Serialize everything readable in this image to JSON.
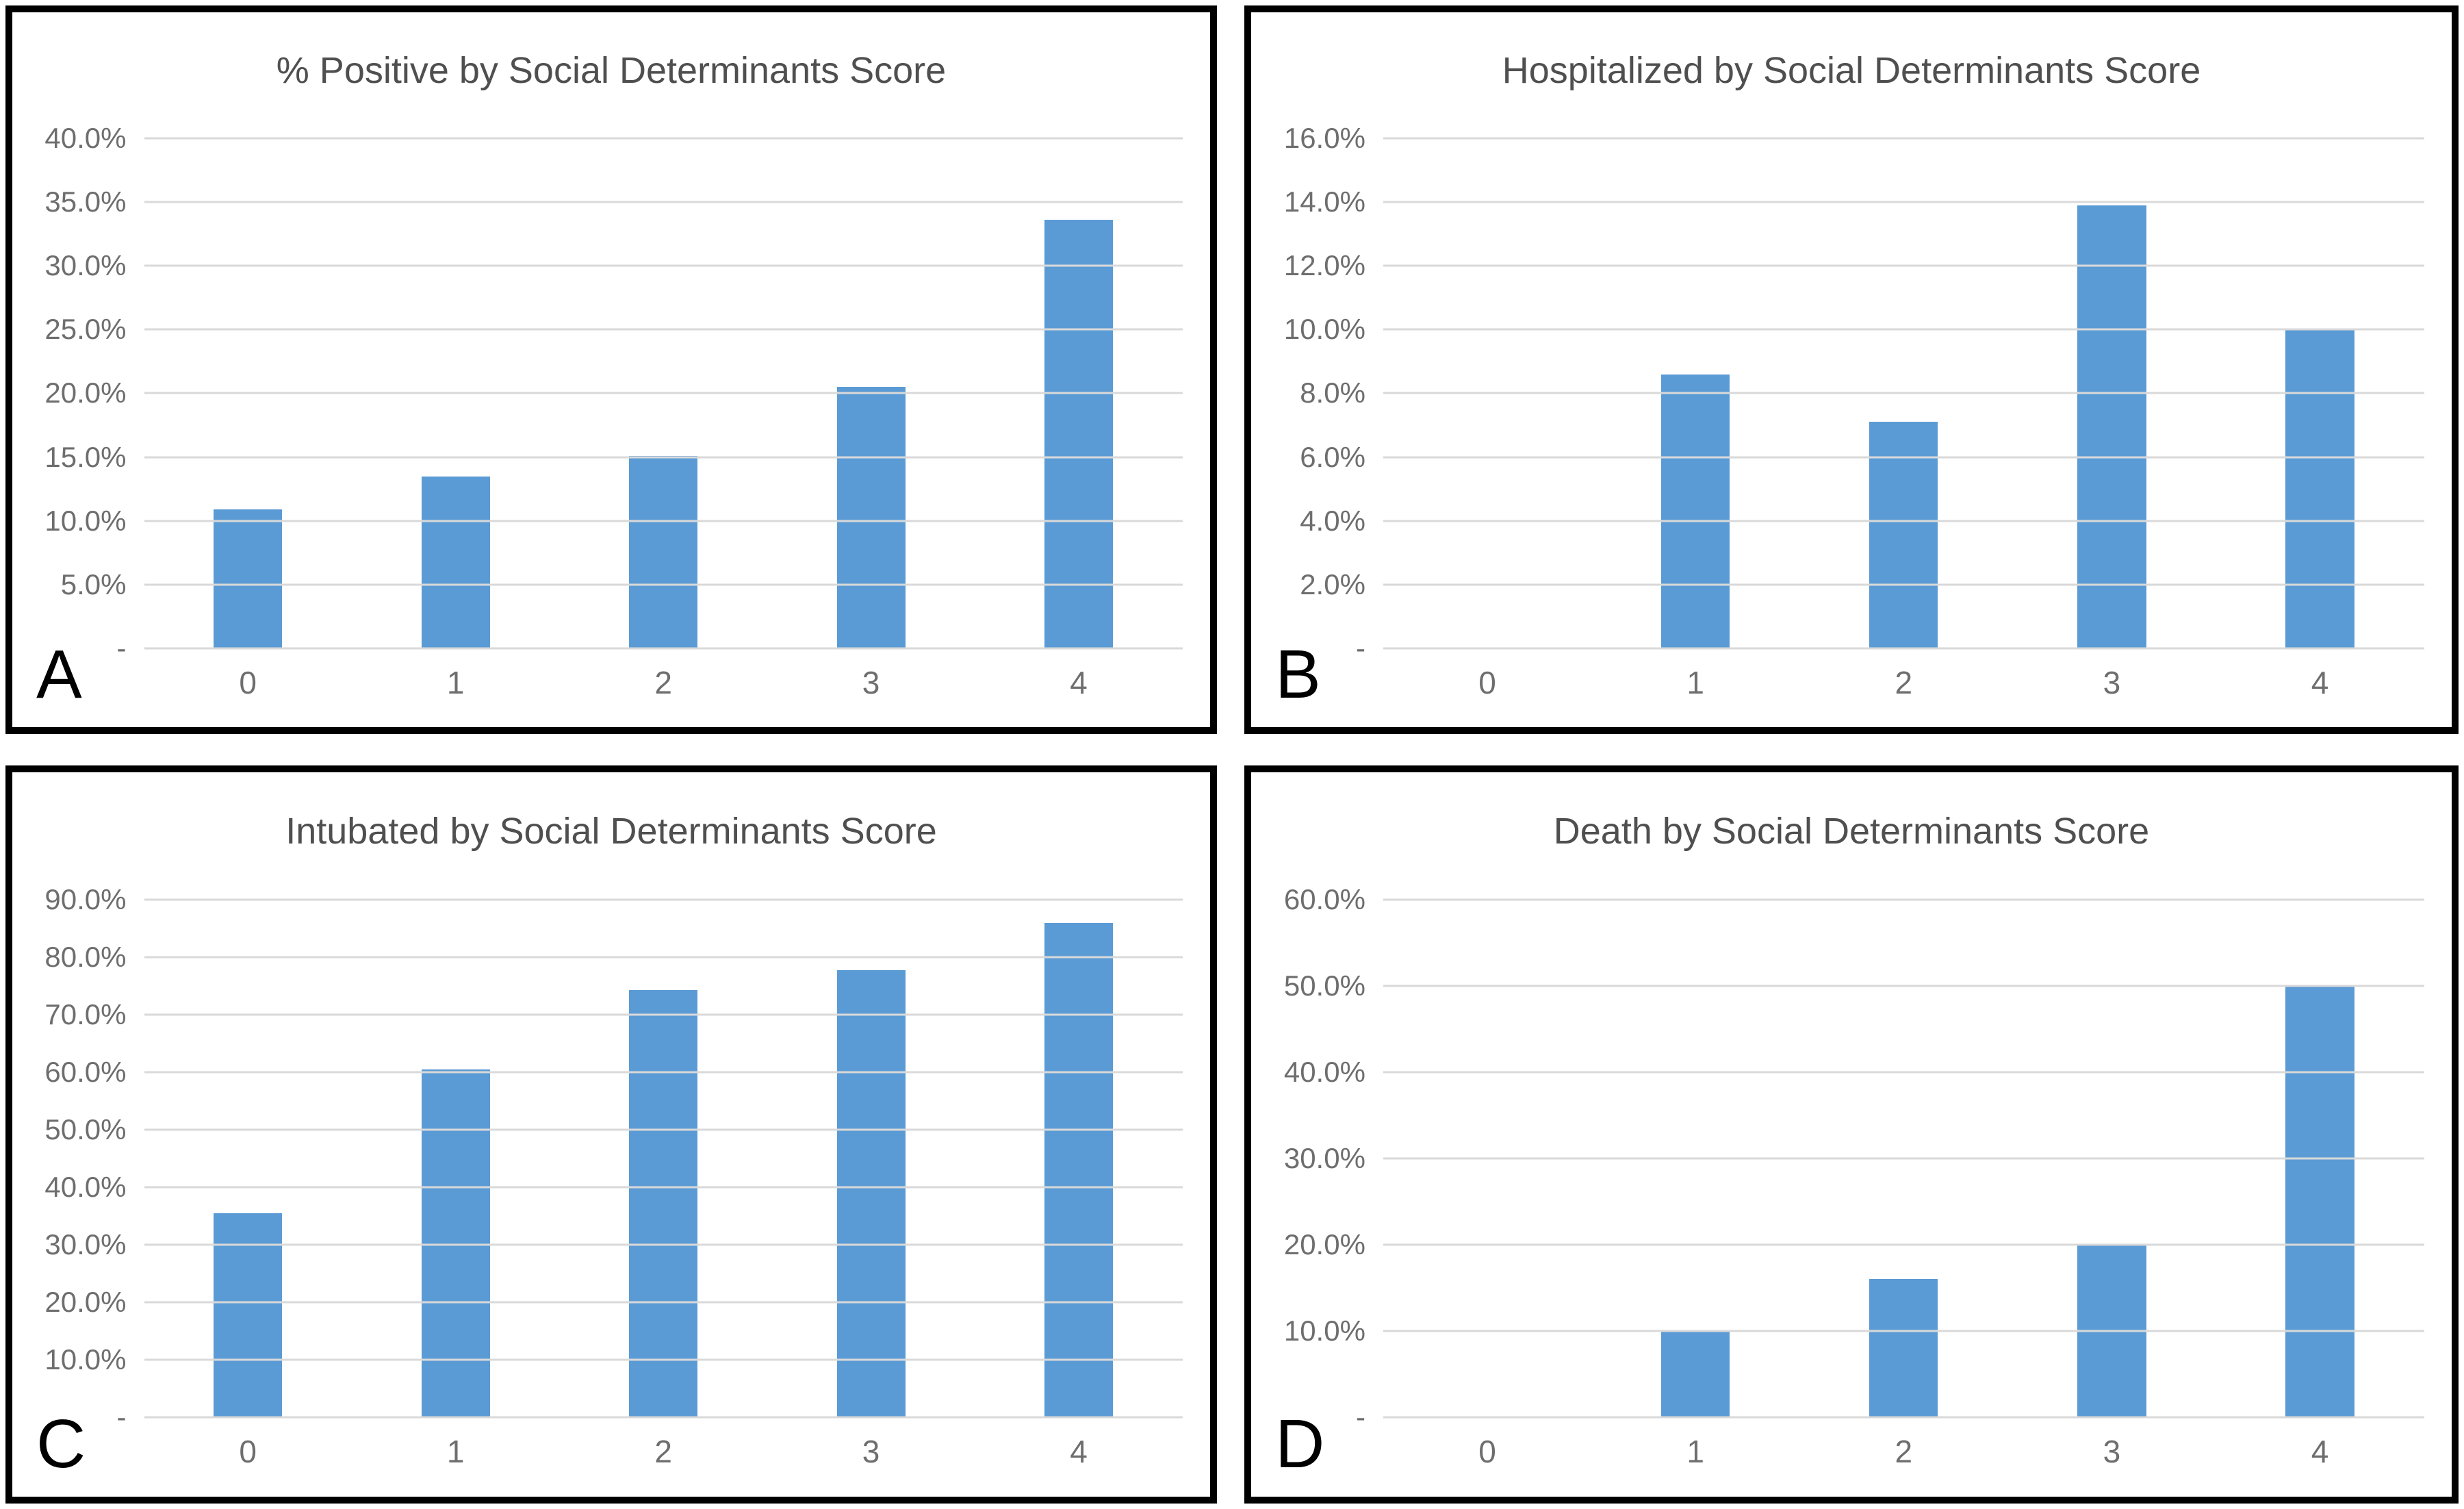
{
  "figure": {
    "background_color": "#ffffff",
    "panel_border_color": "#000000",
    "bar_color": "#5b9bd5",
    "gridline_color": "#d9d9d9",
    "axis_label_color": "#6e6e6e",
    "title_color": "#4f4f4f",
    "panel_letter_color": "#000000"
  },
  "chart_data": [
    {
      "type": "bar",
      "panel_label": "A",
      "title": "% Positive by Social Determinants Score",
      "xlabel": "",
      "ylabel": "",
      "categories": [
        "0",
        "1",
        "2",
        "3",
        "4"
      ],
      "values": [
        10.9,
        13.5,
        15.1,
        20.5,
        33.6
      ],
      "unit": "%",
      "ylim": [
        0,
        40
      ],
      "ytick_step": 5,
      "grid": true,
      "legend": false,
      "yticks": [
        {
          "value": 40,
          "label": "40.0%"
        },
        {
          "value": 35,
          "label": "35.0%"
        },
        {
          "value": 30,
          "label": "30.0%"
        },
        {
          "value": 25,
          "label": "25.0%"
        },
        {
          "value": 20,
          "label": "20.0%"
        },
        {
          "value": 15,
          "label": "15.0%"
        },
        {
          "value": 10,
          "label": "10.0%"
        },
        {
          "value": 5,
          "label": "5.0%"
        },
        {
          "value": 0,
          "label": "-"
        }
      ]
    },
    {
      "type": "bar",
      "panel_label": "B",
      "title": "Hospitalized by Social Determinants Score",
      "xlabel": "",
      "ylabel": "",
      "categories": [
        "0",
        "1",
        "2",
        "3",
        "4"
      ],
      "values": [
        0,
        8.6,
        7.1,
        13.9,
        10.0
      ],
      "unit": "%",
      "ylim": [
        0,
        16
      ],
      "ytick_step": 2,
      "grid": true,
      "legend": false,
      "yticks": [
        {
          "value": 16,
          "label": "16.0%"
        },
        {
          "value": 14,
          "label": "14.0%"
        },
        {
          "value": 12,
          "label": "12.0%"
        },
        {
          "value": 10,
          "label": "10.0%"
        },
        {
          "value": 8,
          "label": "8.0%"
        },
        {
          "value": 6,
          "label": "6.0%"
        },
        {
          "value": 4,
          "label": "4.0%"
        },
        {
          "value": 2,
          "label": "2.0%"
        },
        {
          "value": 0,
          "label": "-"
        }
      ]
    },
    {
      "type": "bar",
      "panel_label": "C",
      "title": "Intubated by Social Determinants Score",
      "xlabel": "",
      "ylabel": "",
      "categories": [
        "0",
        "1",
        "2",
        "3",
        "4"
      ],
      "values": [
        35.5,
        60.5,
        74.3,
        77.8,
        86.0
      ],
      "unit": "%",
      "ylim": [
        0,
        90
      ],
      "ytick_step": 10,
      "grid": true,
      "legend": false,
      "yticks": [
        {
          "value": 90,
          "label": "90.0%"
        },
        {
          "value": 80,
          "label": "80.0%"
        },
        {
          "value": 70,
          "label": "70.0%"
        },
        {
          "value": 60,
          "label": "60.0%"
        },
        {
          "value": 50,
          "label": "50.0%"
        },
        {
          "value": 40,
          "label": "40.0%"
        },
        {
          "value": 30,
          "label": "30.0%"
        },
        {
          "value": 20,
          "label": "20.0%"
        },
        {
          "value": 10,
          "label": "10.0%"
        },
        {
          "value": 0,
          "label": "-"
        }
      ]
    },
    {
      "type": "bar",
      "panel_label": "D",
      "title": "Death by Social Determinants Score",
      "xlabel": "",
      "ylabel": "",
      "categories": [
        "0",
        "1",
        "2",
        "3",
        "4"
      ],
      "values": [
        0,
        10.0,
        16.0,
        20.0,
        50.0
      ],
      "unit": "%",
      "ylim": [
        0,
        60
      ],
      "ytick_step": 10,
      "grid": true,
      "legend": false,
      "yticks": [
        {
          "value": 60,
          "label": "60.0%"
        },
        {
          "value": 50,
          "label": "50.0%"
        },
        {
          "value": 40,
          "label": "40.0%"
        },
        {
          "value": 30,
          "label": "30.0%"
        },
        {
          "value": 20,
          "label": "20.0%"
        },
        {
          "value": 10,
          "label": "10.0%"
        },
        {
          "value": 0,
          "label": "-"
        }
      ]
    }
  ]
}
